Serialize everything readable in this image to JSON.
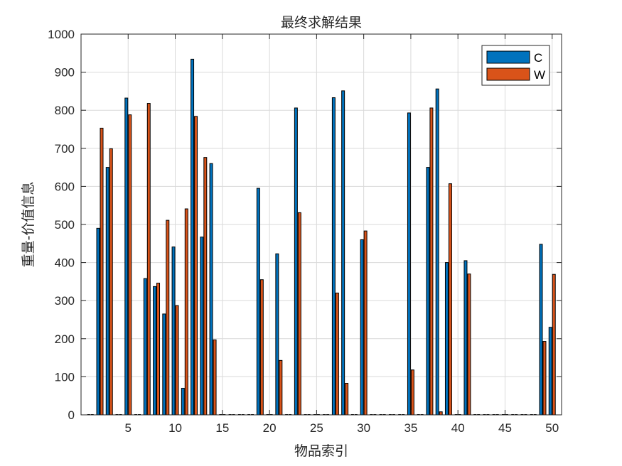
{
  "chart_data": {
    "type": "bar",
    "title": "最终求解结果",
    "xlabel": "物品索引",
    "ylabel": "重量-价值信息",
    "xlim": [
      0,
      51
    ],
    "ylim": [
      0,
      1000
    ],
    "xticks": [
      5,
      10,
      15,
      20,
      25,
      30,
      35,
      40,
      45,
      50
    ],
    "yticks": [
      0,
      100,
      200,
      300,
      400,
      500,
      600,
      700,
      800,
      900,
      1000
    ],
    "grid": true,
    "legend_position": "top-right",
    "x": [
      1,
      2,
      3,
      4,
      5,
      6,
      7,
      8,
      9,
      10,
      11,
      12,
      13,
      14,
      15,
      16,
      17,
      18,
      19,
      20,
      21,
      22,
      23,
      24,
      25,
      26,
      27,
      28,
      29,
      30,
      31,
      32,
      33,
      34,
      35,
      36,
      37,
      38,
      39,
      40,
      41,
      42,
      43,
      44,
      45,
      46,
      47,
      48,
      49,
      50
    ],
    "series": [
      {
        "name": "C",
        "color": "#0072BD",
        "values": [
          0,
          490,
          650,
          0,
          832,
          0,
          358,
          337,
          265,
          441,
          70,
          934,
          467,
          660,
          0,
          0,
          0,
          0,
          595,
          0,
          423,
          0,
          806,
          0,
          0,
          0,
          833,
          851,
          0,
          460,
          0,
          0,
          0,
          0,
          793,
          0,
          650,
          856,
          400,
          0,
          405,
          0,
          0,
          0,
          0,
          0,
          0,
          0,
          448,
          230
        ]
      },
      {
        "name": "W",
        "color": "#D95319",
        "values": [
          0,
          753,
          699,
          0,
          788,
          0,
          818,
          346,
          511,
          287,
          541,
          784,
          676,
          197,
          0,
          0,
          0,
          0,
          355,
          0,
          143,
          0,
          531,
          0,
          0,
          0,
          320,
          83,
          0,
          483,
          0,
          0,
          0,
          0,
          118,
          0,
          806,
          8,
          607,
          0,
          370,
          0,
          0,
          0,
          0,
          0,
          0,
          0,
          193,
          369
        ]
      }
    ]
  }
}
